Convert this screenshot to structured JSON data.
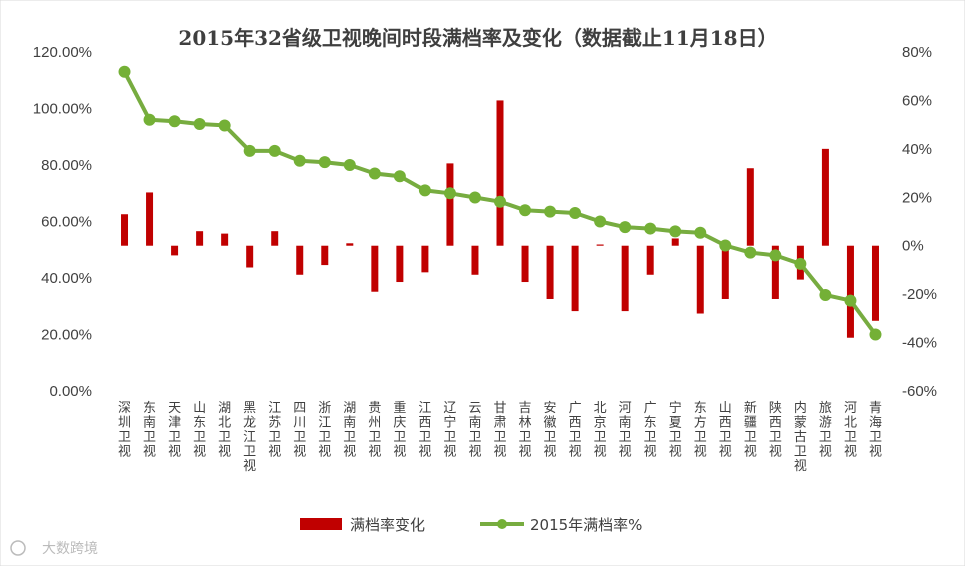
{
  "chart_data": {
    "type": "bar+line",
    "title": "2015年32省级卫视晚间时段满档率及变化（数据截止11月18日）",
    "categories": [
      "深圳卫视",
      "东南卫视",
      "天津卫视",
      "山东卫视",
      "湖北卫视",
      "黑龙江卫视",
      "江苏卫视",
      "四川卫视",
      "浙江卫视",
      "湖南卫视",
      "贵州卫视",
      "重庆卫视",
      "江西卫视",
      "辽宁卫视",
      "云南卫视",
      "甘肃卫视",
      "吉林卫视",
      "安徽卫视",
      "广西卫视",
      "北京卫视",
      "河南卫视",
      "广东卫视",
      "宁夏卫视",
      "东方卫视",
      "山西卫视",
      "新疆卫视",
      "陕西卫视",
      "内蒙古卫视",
      "旅游卫视",
      "河北卫视",
      "青海卫视"
    ],
    "series": [
      {
        "name": "满档率变化",
        "kind": "bar",
        "axis": "right",
        "color": "#c00000",
        "values": [
          13,
          22,
          -4,
          6,
          5,
          -9,
          6,
          -12,
          -8,
          1,
          -19,
          -15,
          -11,
          34,
          -12,
          60,
          -15,
          -22,
          -27,
          0.5,
          -27,
          -12,
          3,
          -28,
          -22,
          32,
          -22,
          -14,
          40,
          -38,
          -31
        ]
      },
      {
        "name": "2015年满档率%",
        "kind": "line",
        "axis": "left",
        "color": "#77ac40",
        "marker_color": "#74b036",
        "values": [
          113,
          96,
          95.5,
          94.5,
          94,
          85,
          85,
          81.5,
          81,
          80,
          77,
          76,
          71,
          70,
          68.5,
          67,
          64,
          63.5,
          63,
          60,
          58,
          57.5,
          56.5,
          56,
          51.5,
          49,
          48,
          45,
          34,
          32,
          20
        ]
      }
    ],
    "left_axis": {
      "min": 0,
      "max": 120,
      "step": 20,
      "tick_labels": [
        "0.00%",
        "20.00%",
        "40.00%",
        "60.00%",
        "80.00%",
        "100.00%",
        "120.00%"
      ]
    },
    "right_axis": {
      "min": -60,
      "max": 80,
      "step": 20,
      "tick_labels": [
        "-60%",
        "-40%",
        "-20%",
        "0%",
        "20%",
        "40%",
        "60%",
        "80%"
      ]
    },
    "grid": false,
    "legend_position": "bottom",
    "legend": [
      "满档率变化",
      "2015年满档率%"
    ],
    "watermark": "大数跨境"
  }
}
